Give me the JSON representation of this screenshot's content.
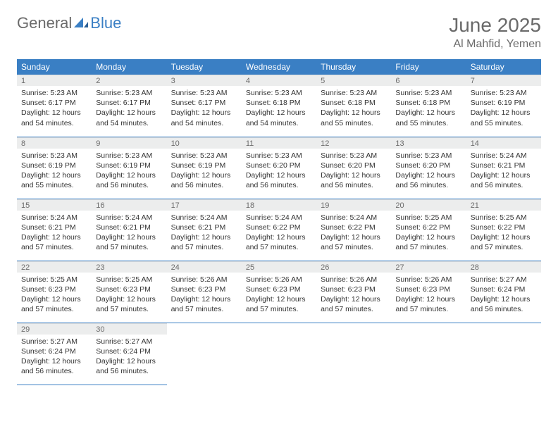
{
  "brand": {
    "part1": "General",
    "part2": "Blue"
  },
  "title": "June 2025",
  "location": "Al Mahfid, Yemen",
  "colors": {
    "header_bg": "#3a7fc4",
    "header_text": "#ffffff",
    "daynum_bg": "#eceded",
    "text_muted": "#6a6a6a",
    "border": "#3a7fc4"
  },
  "weekdays": [
    "Sunday",
    "Monday",
    "Tuesday",
    "Wednesday",
    "Thursday",
    "Friday",
    "Saturday"
  ],
  "days": [
    {
      "n": 1,
      "sr": "5:23 AM",
      "ss": "6:17 PM",
      "dl": "12 hours and 54 minutes."
    },
    {
      "n": 2,
      "sr": "5:23 AM",
      "ss": "6:17 PM",
      "dl": "12 hours and 54 minutes."
    },
    {
      "n": 3,
      "sr": "5:23 AM",
      "ss": "6:17 PM",
      "dl": "12 hours and 54 minutes."
    },
    {
      "n": 4,
      "sr": "5:23 AM",
      "ss": "6:18 PM",
      "dl": "12 hours and 54 minutes."
    },
    {
      "n": 5,
      "sr": "5:23 AM",
      "ss": "6:18 PM",
      "dl": "12 hours and 55 minutes."
    },
    {
      "n": 6,
      "sr": "5:23 AM",
      "ss": "6:18 PM",
      "dl": "12 hours and 55 minutes."
    },
    {
      "n": 7,
      "sr": "5:23 AM",
      "ss": "6:19 PM",
      "dl": "12 hours and 55 minutes."
    },
    {
      "n": 8,
      "sr": "5:23 AM",
      "ss": "6:19 PM",
      "dl": "12 hours and 55 minutes."
    },
    {
      "n": 9,
      "sr": "5:23 AM",
      "ss": "6:19 PM",
      "dl": "12 hours and 56 minutes."
    },
    {
      "n": 10,
      "sr": "5:23 AM",
      "ss": "6:19 PM",
      "dl": "12 hours and 56 minutes."
    },
    {
      "n": 11,
      "sr": "5:23 AM",
      "ss": "6:20 PM",
      "dl": "12 hours and 56 minutes."
    },
    {
      "n": 12,
      "sr": "5:23 AM",
      "ss": "6:20 PM",
      "dl": "12 hours and 56 minutes."
    },
    {
      "n": 13,
      "sr": "5:23 AM",
      "ss": "6:20 PM",
      "dl": "12 hours and 56 minutes."
    },
    {
      "n": 14,
      "sr": "5:24 AM",
      "ss": "6:21 PM",
      "dl": "12 hours and 56 minutes."
    },
    {
      "n": 15,
      "sr": "5:24 AM",
      "ss": "6:21 PM",
      "dl": "12 hours and 57 minutes."
    },
    {
      "n": 16,
      "sr": "5:24 AM",
      "ss": "6:21 PM",
      "dl": "12 hours and 57 minutes."
    },
    {
      "n": 17,
      "sr": "5:24 AM",
      "ss": "6:21 PM",
      "dl": "12 hours and 57 minutes."
    },
    {
      "n": 18,
      "sr": "5:24 AM",
      "ss": "6:22 PM",
      "dl": "12 hours and 57 minutes."
    },
    {
      "n": 19,
      "sr": "5:24 AM",
      "ss": "6:22 PM",
      "dl": "12 hours and 57 minutes."
    },
    {
      "n": 20,
      "sr": "5:25 AM",
      "ss": "6:22 PM",
      "dl": "12 hours and 57 minutes."
    },
    {
      "n": 21,
      "sr": "5:25 AM",
      "ss": "6:22 PM",
      "dl": "12 hours and 57 minutes."
    },
    {
      "n": 22,
      "sr": "5:25 AM",
      "ss": "6:23 PM",
      "dl": "12 hours and 57 minutes."
    },
    {
      "n": 23,
      "sr": "5:25 AM",
      "ss": "6:23 PM",
      "dl": "12 hours and 57 minutes."
    },
    {
      "n": 24,
      "sr": "5:26 AM",
      "ss": "6:23 PM",
      "dl": "12 hours and 57 minutes."
    },
    {
      "n": 25,
      "sr": "5:26 AM",
      "ss": "6:23 PM",
      "dl": "12 hours and 57 minutes."
    },
    {
      "n": 26,
      "sr": "5:26 AM",
      "ss": "6:23 PM",
      "dl": "12 hours and 57 minutes."
    },
    {
      "n": 27,
      "sr": "5:26 AM",
      "ss": "6:23 PM",
      "dl": "12 hours and 57 minutes."
    },
    {
      "n": 28,
      "sr": "5:27 AM",
      "ss": "6:24 PM",
      "dl": "12 hours and 56 minutes."
    },
    {
      "n": 29,
      "sr": "5:27 AM",
      "ss": "6:24 PM",
      "dl": "12 hours and 56 minutes."
    },
    {
      "n": 30,
      "sr": "5:27 AM",
      "ss": "6:24 PM",
      "dl": "12 hours and 56 minutes."
    }
  ],
  "labels": {
    "sunrise": "Sunrise:",
    "sunset": "Sunset:",
    "daylight": "Daylight:"
  },
  "layout": {
    "start_weekday": 0,
    "cols": 7
  }
}
